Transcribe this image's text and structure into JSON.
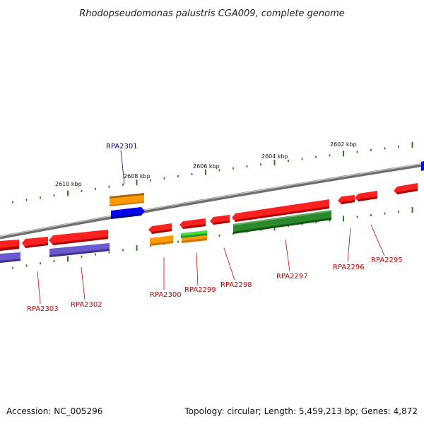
{
  "title": "Rhodopseudomonas palustris CGA009, complete genome",
  "footer": {
    "accession": "Accession: NC_005296",
    "topology": "Topology: circular; Length: 5,459,213 bp; Genes: 4,872"
  },
  "colors": {
    "backbone": "#808080",
    "ticks": "#2e7d1e",
    "label_red": "#cc0000",
    "label_blue": "#0000aa"
  },
  "kbp_labels": [
    "2610 kbp",
    "2608 kbp",
    "2606 kbp",
    "2604 kbp",
    "2602 kbp"
  ],
  "genes": [
    {
      "name": "RPA2303",
      "color": "#e80000",
      "label_color": "#cc0000"
    },
    {
      "name": "RPA2302",
      "color": "#e80000",
      "label_color": "#cc0000"
    },
    {
      "name": "RPA2301",
      "color": "#0000ee",
      "label_color": "#0000aa"
    },
    {
      "name": "RPA2300",
      "color": "#e80000",
      "label_color": "#cc0000"
    },
    {
      "name": "RPA2299",
      "color": "#e80000",
      "label_color": "#cc0000"
    },
    {
      "name": "RPA2298",
      "color": "#e80000",
      "label_color": "#cc0000"
    },
    {
      "name": "RPA2297",
      "color": "#e80000",
      "label_color": "#cc0000"
    },
    {
      "name": "RPA2296",
      "color": "#e80000",
      "label_color": "#cc0000"
    },
    {
      "name": "RPA2295",
      "color": "#e80000",
      "label_color": "#cc0000"
    }
  ],
  "feature_colors": {
    "cds_orange": "#ff9900",
    "cds_purple": "#6a5acd",
    "cds_green": "#2a8a2a",
    "cds_lightgreen": "#44cc44"
  }
}
